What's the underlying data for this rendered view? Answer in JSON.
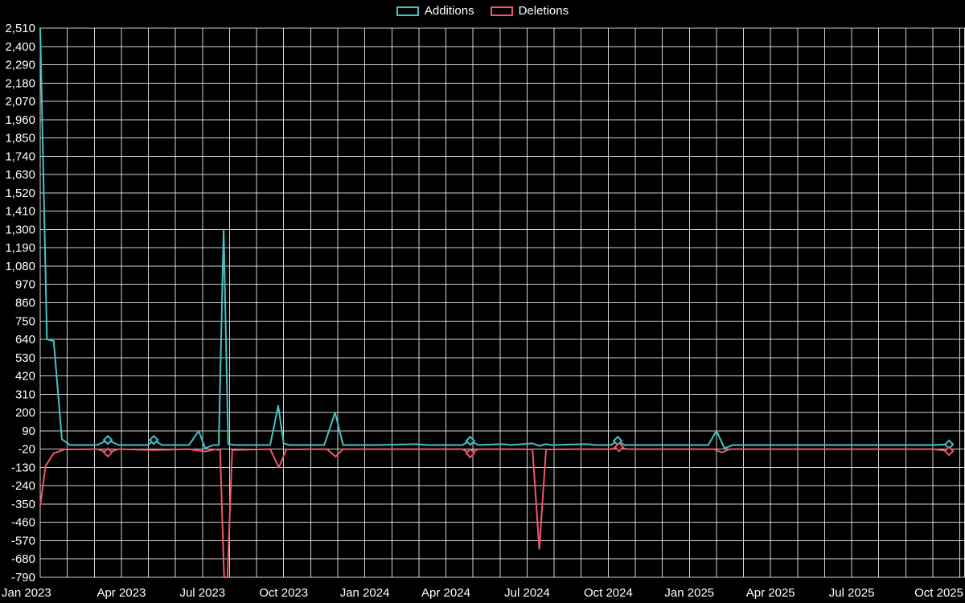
{
  "legend": {
    "items": [
      {
        "label": "Additions",
        "color": "#44c2c4"
      },
      {
        "label": "Deletions",
        "color": "#f2566b"
      }
    ]
  },
  "chart_data": {
    "type": "line",
    "title": "",
    "legend_position": "top",
    "background": "#000000",
    "text_color": "#ffffff",
    "grid": true,
    "grid_color": "rgba(255,255,255,0.82)",
    "x": {
      "labels": [
        "Jan 2023",
        "Apr 2023",
        "Jul 2023",
        "Oct 2023",
        "Jan 2024",
        "Apr 2024",
        "Jul 2024",
        "Oct 2024",
        "Jan 2025",
        "Apr 2025",
        "Jul 2025",
        "Oct 2025"
      ],
      "label_months": [
        0,
        3,
        6,
        9,
        12,
        15,
        18,
        21,
        24,
        27,
        30,
        33
      ],
      "months_span": 34,
      "minor_grid_every_month": true
    },
    "y": {
      "min": -790,
      "max": 2510,
      "step": 110
    },
    "series": [
      {
        "name": "Additions",
        "color": "#44c2c4",
        "points": [
          [
            0,
            2510
          ],
          [
            0.25,
            640
          ],
          [
            0.5,
            630
          ],
          [
            0.8,
            40
          ],
          [
            1.1,
            5
          ],
          [
            2.1,
            5
          ],
          [
            2.5,
            35
          ],
          [
            2.9,
            5
          ],
          [
            4.0,
            5
          ],
          [
            4.2,
            35
          ],
          [
            4.5,
            5
          ],
          [
            5.5,
            5
          ],
          [
            5.86,
            90
          ],
          [
            6.1,
            -15
          ],
          [
            6.4,
            5
          ],
          [
            6.6,
            5
          ],
          [
            6.78,
            1300
          ],
          [
            6.95,
            10
          ],
          [
            7.2,
            5
          ],
          [
            8.5,
            5
          ],
          [
            8.8,
            240
          ],
          [
            9.0,
            15
          ],
          [
            9.2,
            5
          ],
          [
            10.5,
            5
          ],
          [
            10.9,
            200
          ],
          [
            11.2,
            5
          ],
          [
            12.5,
            5
          ],
          [
            13.9,
            10
          ],
          [
            14.3,
            5
          ],
          [
            15.6,
            5
          ],
          [
            15.9,
            30
          ],
          [
            16.2,
            5
          ],
          [
            17.1,
            10
          ],
          [
            17.4,
            5
          ],
          [
            18.2,
            15
          ],
          [
            18.45,
            0
          ],
          [
            18.7,
            10
          ],
          [
            18.9,
            5
          ],
          [
            20.2,
            10
          ],
          [
            20.5,
            5
          ],
          [
            21.1,
            5
          ],
          [
            21.35,
            30
          ],
          [
            21.6,
            5
          ],
          [
            23,
            5
          ],
          [
            24.7,
            5
          ],
          [
            25.0,
            90
          ],
          [
            25.3,
            -15
          ],
          [
            25.6,
            5
          ],
          [
            27,
            5
          ],
          [
            30,
            5
          ],
          [
            33,
            5
          ],
          [
            33.6,
            8
          ]
        ],
        "marker_points": [
          [
            2.5,
            35
          ],
          [
            4.2,
            35
          ],
          [
            15.9,
            30
          ],
          [
            21.35,
            30
          ],
          [
            33.6,
            8
          ]
        ]
      },
      {
        "name": "Deletions",
        "color": "#f2566b",
        "points": [
          [
            0,
            -360
          ],
          [
            0.2,
            -120
          ],
          [
            0.5,
            -45
          ],
          [
            0.9,
            -22
          ],
          [
            2.1,
            -20
          ],
          [
            2.5,
            -40
          ],
          [
            2.9,
            -20
          ],
          [
            4.2,
            -25
          ],
          [
            5.5,
            -20
          ],
          [
            6.1,
            -35
          ],
          [
            6.45,
            -22
          ],
          [
            6.65,
            -25
          ],
          [
            6.8,
            -790
          ],
          [
            6.92,
            -790
          ],
          [
            7.1,
            -25
          ],
          [
            8.5,
            -20
          ],
          [
            8.82,
            -130
          ],
          [
            9.1,
            -22
          ],
          [
            10.6,
            -20
          ],
          [
            10.92,
            -65
          ],
          [
            11.2,
            -20
          ],
          [
            13,
            -20
          ],
          [
            15.6,
            -20
          ],
          [
            15.9,
            -45
          ],
          [
            16.2,
            -20
          ],
          [
            17.5,
            -20
          ],
          [
            18.2,
            -22
          ],
          [
            18.45,
            -620
          ],
          [
            18.7,
            -22
          ],
          [
            20,
            -20
          ],
          [
            21.1,
            -20
          ],
          [
            21.4,
            -8
          ],
          [
            21.7,
            -20
          ],
          [
            23,
            -20
          ],
          [
            24.9,
            -20
          ],
          [
            25.2,
            -40
          ],
          [
            25.5,
            -20
          ],
          [
            27,
            -20
          ],
          [
            30,
            -20
          ],
          [
            33,
            -20
          ],
          [
            33.6,
            -32
          ]
        ],
        "marker_points": [
          [
            2.5,
            -40
          ],
          [
            15.9,
            -45
          ],
          [
            21.4,
            -8
          ],
          [
            33.6,
            -32
          ]
        ]
      }
    ]
  }
}
